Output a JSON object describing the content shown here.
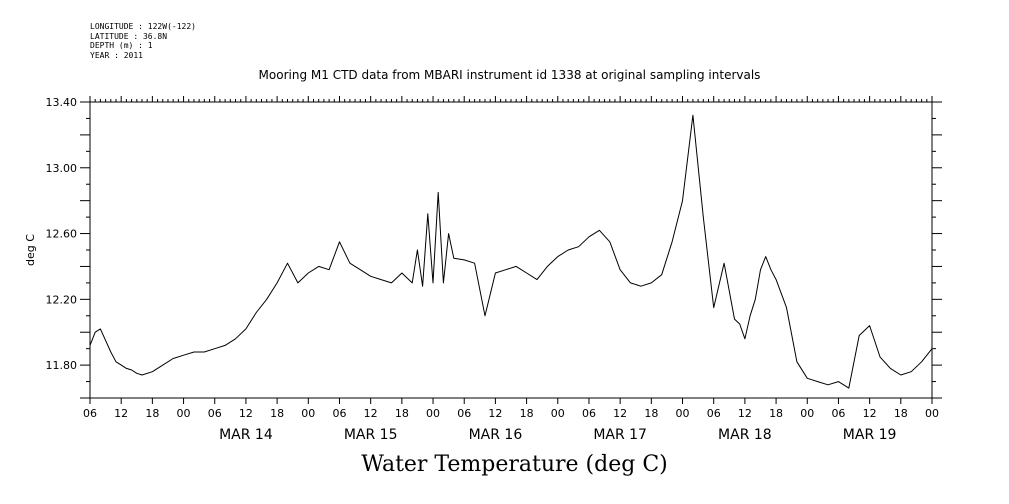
{
  "metadata": [
    "LONGITUDE : 122W(-122)",
    "LATITUDE : 36.8N",
    "DEPTH (m) : 1",
    "YEAR : 2011"
  ],
  "chart_data": {
    "type": "line",
    "title": "Mooring M1 CTD data from MBARI instrument id 1338 at original sampling intervals",
    "caption": "Water Temperature (deg C)",
    "ylabel": "deg C",
    "xlabel": "",
    "x_range_hours_from_MAR14_00": [
      -18,
      144
    ],
    "ylim": [
      11.6,
      13.4
    ],
    "y_ticks": [
      "11.80",
      "12.20",
      "12.60",
      "13.00",
      "13.40"
    ],
    "x_hour_ticks": [
      "00",
      "06",
      "12",
      "18"
    ],
    "day_labels": [
      "MAR 14",
      "MAR 15",
      "MAR 16",
      "MAR 17",
      "MAR 18",
      "MAR 19"
    ],
    "series": [
      {
        "name": "",
        "color": "#000000",
        "x": [
          -18,
          -17,
          -16,
          -15,
          -14,
          -13,
          -12,
          -11,
          -10,
          -9,
          -8,
          -6,
          -4,
          -2,
          0,
          2,
          4,
          6,
          8,
          10,
          12,
          14,
          16,
          18,
          20,
          22,
          24,
          26,
          28,
          30,
          32,
          34,
          36,
          38,
          40,
          42,
          44,
          45,
          46,
          47,
          48,
          49,
          50,
          51,
          52,
          54,
          56,
          58,
          60,
          62,
          64,
          66,
          68,
          70,
          72,
          74,
          76,
          78,
          80,
          82,
          84,
          86,
          88,
          90,
          92,
          94,
          96,
          98,
          100,
          102,
          104,
          106,
          107,
          108,
          109,
          110,
          111,
          112,
          113,
          114,
          116,
          118,
          120,
          122,
          124,
          126,
          128,
          130,
          132,
          134,
          136,
          138,
          140,
          142,
          144
        ],
        "y": [
          11.92,
          12.0,
          12.02,
          11.95,
          11.88,
          11.82,
          11.8,
          11.78,
          11.77,
          11.75,
          11.74,
          11.76,
          11.8,
          11.84,
          11.86,
          11.88,
          11.88,
          11.9,
          11.92,
          11.96,
          12.02,
          12.12,
          12.2,
          12.3,
          12.42,
          12.3,
          12.36,
          12.4,
          12.38,
          12.55,
          12.42,
          12.38,
          12.34,
          12.32,
          12.3,
          12.36,
          12.3,
          12.5,
          12.28,
          12.72,
          12.3,
          12.85,
          12.3,
          12.6,
          12.45,
          12.44,
          12.42,
          12.1,
          12.36,
          12.38,
          12.4,
          12.36,
          12.32,
          12.4,
          12.46,
          12.5,
          12.52,
          12.58,
          12.62,
          12.55,
          12.38,
          12.3,
          12.28,
          12.3,
          12.35,
          12.55,
          12.8,
          13.32,
          12.7,
          12.15,
          12.42,
          12.08,
          12.05,
          11.96,
          12.1,
          12.2,
          12.38,
          12.46,
          12.38,
          12.32,
          12.15,
          11.82,
          11.72,
          11.7,
          11.68,
          11.7,
          11.66,
          11.98,
          12.04,
          11.85,
          11.78,
          11.74,
          11.76,
          11.82,
          11.9
        ]
      }
    ]
  }
}
